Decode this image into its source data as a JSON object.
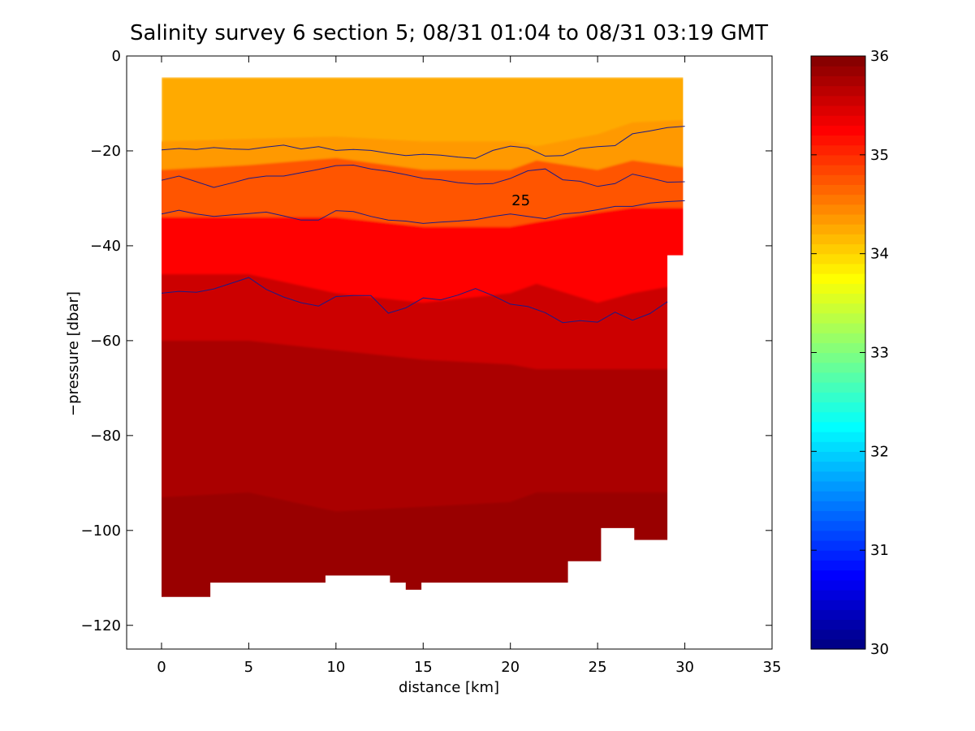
{
  "chart_data": {
    "type": "heatmap",
    "title": "Salinity survey 6 section 5; 08/31 01:04 to 08/31 03:19 GMT",
    "xlabel": "distance [km]",
    "ylabel": "−pressure [dbar]",
    "xlim": [
      -2,
      35
    ],
    "ylim": [
      -125,
      0
    ],
    "xticks": [
      0,
      5,
      10,
      15,
      20,
      25,
      30,
      35
    ],
    "yticks": [
      0,
      -20,
      -40,
      -60,
      -80,
      -100,
      -120
    ],
    "xtick_labels": [
      "0",
      "5",
      "10",
      "15",
      "20",
      "25",
      "30",
      "35"
    ],
    "ytick_labels": [
      "0",
      "−20",
      "−40",
      "−60",
      "−80",
      "−100",
      "−120"
    ],
    "colorbar": {
      "range": [
        30,
        36
      ],
      "ticks": [
        30,
        31,
        32,
        33,
        34,
        35,
        36
      ],
      "tick_labels": [
        "30",
        "31",
        "32",
        "33",
        "34",
        "35",
        "36"
      ],
      "colormap": "jet",
      "levels": 60
    },
    "salinity_bands": [
      {
        "x": [
          0,
          5,
          10,
          15,
          20,
          21.5,
          25,
          27,
          30
        ],
        "y": [
          -18,
          -17.5,
          -17,
          -18,
          -18,
          -19,
          -16.5,
          -14,
          -13.5
        ],
        "value": 34.4
      },
      {
        "x": [
          0,
          5,
          10,
          15,
          20,
          21.5,
          25,
          27,
          30
        ],
        "y": [
          -24,
          -23,
          -21.5,
          -24,
          -24,
          -22,
          -24,
          -22,
          -23.5
        ],
        "value": 34.8
      },
      {
        "x": [
          0,
          5,
          10,
          15,
          20,
          21.5,
          25,
          27,
          30
        ],
        "y": [
          -34,
          -34,
          -34,
          -36,
          -36,
          -35,
          -33,
          -32,
          -32
        ],
        "value": 35.2
      },
      {
        "x": [
          0,
          5,
          10,
          15,
          20,
          21.5,
          25,
          27,
          30
        ],
        "y": [
          -46,
          -46,
          -50,
          -52,
          -50,
          -48,
          -52,
          -50,
          -48
        ],
        "value": 35.5
      },
      {
        "x": [
          0,
          5,
          10,
          15,
          20,
          21.5,
          25,
          27,
          30
        ],
        "y": [
          -60,
          -60,
          -62,
          -64,
          -65,
          -66,
          -66,
          -66,
          -66
        ],
        "value": 35.7
      },
      {
        "x": [
          0,
          5,
          10,
          15,
          20,
          21.5,
          25,
          27,
          30
        ],
        "y": [
          -93,
          -92,
          -96,
          -95,
          -94,
          -92,
          -92,
          -92,
          -92
        ],
        "value": 35.9
      }
    ],
    "surface_value": 34.2,
    "bottom_value": 35.75,
    "data_extent": {
      "top": -4.5,
      "right_boundary": [
        [
          29.9,
          -4.5
        ],
        [
          29.9,
          -42
        ],
        [
          29.0,
          -42
        ],
        [
          29.0,
          -102
        ],
        [
          27.1,
          -102
        ],
        [
          27.1,
          -99.5
        ],
        [
          25.2,
          -99.5
        ],
        [
          25.2,
          -106.5
        ],
        [
          23.3,
          -106.5
        ],
        [
          23.3,
          -111
        ]
      ],
      "bottom_boundary": [
        [
          23.3,
          -111
        ],
        [
          14.9,
          -111
        ],
        [
          14.9,
          -112.5
        ],
        [
          14.0,
          -112.5
        ],
        [
          14.0,
          -111
        ],
        [
          13.1,
          -111
        ],
        [
          13.1,
          -109.5
        ],
        [
          9.4,
          -109.5
        ],
        [
          9.4,
          -111
        ],
        [
          2.8,
          -111
        ],
        [
          2.8,
          -114
        ],
        [
          0,
          -114
        ],
        [
          0,
          -4.5
        ]
      ]
    },
    "contours": [
      {
        "label": "",
        "x": [
          0,
          1,
          2,
          3,
          4,
          5,
          6,
          7,
          8,
          9,
          10,
          11,
          12,
          13,
          14,
          15,
          16,
          17,
          18,
          19,
          20,
          21,
          22,
          23,
          24,
          25,
          26,
          27,
          28,
          29,
          30
        ],
        "y": [
          -19.8,
          -19.5,
          -19.7,
          -19.3,
          -19.6,
          -19.7,
          -19.2,
          -18.8,
          -19.6,
          -19.1,
          -19.9,
          -19.7,
          -19.9,
          -20.5,
          -21.0,
          -20.7,
          -20.9,
          -21.3,
          -21.6,
          -19.9,
          -19.0,
          -19.4,
          -21.1,
          -21.0,
          -19.5,
          -19.1,
          -18.9,
          -16.4,
          -15.8,
          -15.1,
          -14.8
        ]
      },
      {
        "label": "",
        "x": [
          0,
          1,
          2,
          3,
          4,
          5,
          6,
          7,
          8,
          9,
          10,
          11,
          12,
          13,
          14,
          15,
          16,
          17,
          18,
          19,
          20,
          21,
          22,
          23,
          24,
          25,
          26,
          27,
          28,
          29,
          30
        ],
        "y": [
          -26.2,
          -25.3,
          -26.5,
          -27.7,
          -26.8,
          -25.8,
          -25.3,
          -25.3,
          -24.6,
          -23.9,
          -23.1,
          -23.0,
          -23.8,
          -24.3,
          -25.0,
          -25.8,
          -26.1,
          -26.7,
          -27.0,
          -26.9,
          -25.8,
          -24.2,
          -23.8,
          -26.1,
          -26.4,
          -27.5,
          -26.9,
          -24.9,
          -25.7,
          -26.6,
          -26.5
        ]
      },
      {
        "label": "25",
        "x": [
          0,
          1,
          2,
          3,
          4,
          5,
          6,
          7,
          8,
          9,
          10,
          11,
          12,
          13,
          14,
          15,
          16,
          17,
          18,
          19,
          20,
          21,
          22,
          23,
          24,
          25,
          26,
          27,
          28,
          29,
          30
        ],
        "y": [
          -33.3,
          -32.5,
          -33.3,
          -33.8,
          -33.5,
          -33.2,
          -32.9,
          -33.7,
          -34.6,
          -34.6,
          -32.6,
          -32.8,
          -33.8,
          -34.6,
          -34.8,
          -35.3,
          -35.0,
          -34.8,
          -34.5,
          -33.8,
          -33.3,
          -33.8,
          -34.3,
          -33.3,
          -33.0,
          -32.4,
          -31.7,
          -31.7,
          -31.0,
          -30.7,
          -30.5
        ]
      },
      {
        "label": "",
        "x": [
          0,
          1,
          2,
          3,
          4,
          5,
          6,
          7,
          8,
          9,
          10,
          11,
          12,
          13,
          14,
          15,
          16,
          17,
          18,
          19,
          20,
          21,
          22,
          23,
          24,
          25,
          26,
          27,
          28,
          29
        ],
        "y": [
          -50.0,
          -49.6,
          -49.8,
          -49.1,
          -47.9,
          -46.7,
          -49.2,
          -50.8,
          -52.0,
          -52.7,
          -50.7,
          -50.5,
          -50.5,
          -54.2,
          -53.1,
          -51.0,
          -51.4,
          -50.4,
          -49.0,
          -50.5,
          -52.3,
          -52.8,
          -54.1,
          -56.2,
          -55.8,
          -56.1,
          -54.0,
          -55.7,
          -54.3,
          -51.8
        ]
      }
    ],
    "contour_label_value": "25",
    "contour_label_x": 20.6,
    "contour_label_y": -31.5
  }
}
